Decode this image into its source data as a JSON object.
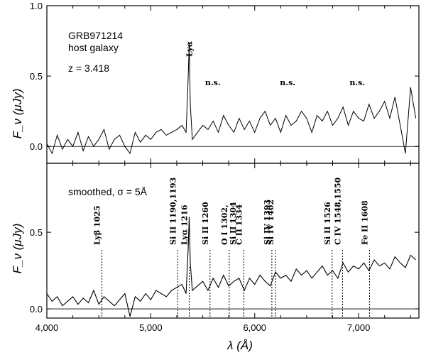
{
  "chart_data": [
    {
      "type": "line",
      "panel": "top",
      "ylabel": "F_ν (μJy)",
      "ylim": [
        -0.12,
        1.0
      ],
      "xlim": [
        4000,
        7580
      ],
      "yticks": [
        "0.0",
        "0.5",
        "1.0"
      ],
      "ytick_values": [
        0,
        0.5,
        1.0
      ],
      "annotations": [
        "GRB971214",
        "host galaxy",
        "z = 3.418"
      ],
      "line_label": "Lyα",
      "line_label_x": 5370,
      "ns_labels": [
        "n.s.",
        "n.s.",
        "n.s."
      ],
      "ns_x": [
        5570,
        6290,
        6960
      ],
      "series": [
        {
          "x": [
            4000,
            4050,
            4100,
            4150,
            4200,
            4250,
            4300,
            4350,
            4400,
            4450,
            4500,
            4550,
            4600,
            4650,
            4700,
            4750,
            4800,
            4850,
            4900,
            4950,
            5000,
            5050,
            5100,
            5150,
            5200,
            5250,
            5300,
            5340,
            5360,
            5370,
            5380,
            5400,
            5450,
            5500,
            5550,
            5600,
            5650,
            5700,
            5750,
            5800,
            5850,
            5900,
            5950,
            6000,
            6050,
            6100,
            6150,
            6200,
            6250,
            6300,
            6350,
            6400,
            6450,
            6500,
            6550,
            6600,
            6650,
            6700,
            6750,
            6800,
            6850,
            6900,
            6950,
            7000,
            7050,
            7100,
            7150,
            7200,
            7250,
            7300,
            7350,
            7400,
            7450,
            7500,
            7550
          ],
          "y": [
            0.02,
            -0.05,
            0.08,
            -0.02,
            0.05,
            0.0,
            0.1,
            -0.03,
            0.07,
            0.0,
            0.05,
            0.12,
            -0.02,
            0.05,
            0.08,
            0.0,
            -0.05,
            0.1,
            0.03,
            0.08,
            0.05,
            0.1,
            0.12,
            0.08,
            0.1,
            0.12,
            0.15,
            0.1,
            0.5,
            0.73,
            0.3,
            0.05,
            0.1,
            0.15,
            0.12,
            0.18,
            0.1,
            0.22,
            0.15,
            0.1,
            0.2,
            0.12,
            0.18,
            0.1,
            0.2,
            0.25,
            0.15,
            0.2,
            0.1,
            0.22,
            0.15,
            0.18,
            0.25,
            0.2,
            0.1,
            0.22,
            0.18,
            0.25,
            0.15,
            0.2,
            0.28,
            0.15,
            0.25,
            0.2,
            0.18,
            0.3,
            0.2,
            0.25,
            0.32,
            0.2,
            0.35,
            0.15,
            -0.05,
            0.42,
            0.2
          ]
        }
      ]
    },
    {
      "type": "line",
      "panel": "bottom",
      "ylabel": "F_ν (μJy)",
      "xlabel": "λ (Å)",
      "ylim": [
        -0.06,
        0.95
      ],
      "xlim": [
        4000,
        7580
      ],
      "xticks": [
        "4,000",
        "5,000",
        "6,000",
        "7,000"
      ],
      "xtick_values": [
        4000,
        5000,
        6000,
        7000
      ],
      "yticks": [
        "0.0",
        "0.5"
      ],
      "ytick_values": [
        0,
        0.5
      ],
      "annotations": [
        "smoothed, σ = 5Å"
      ],
      "lines": [
        {
          "label": "Lyβ 1025",
          "x": 4530
        },
        {
          "label": "Si II 1190,1193",
          "x": 5260
        },
        {
          "label": "Lyα 1216",
          "x": 5370
        },
        {
          "label": "Si II 1260",
          "x": 5570
        },
        {
          "label": "O I 1302,",
          "x": 5755
        },
        {
          "label": "Si II 1304",
          "x": 5755
        },
        {
          "label": "C II 1334",
          "x": 5895
        },
        {
          "label": "Si IV 1393",
          "x": 6165
        },
        {
          "label": "Si IV 1402",
          "x": 6200
        },
        {
          "label": "Si II 1526",
          "x": 6745
        },
        {
          "label": "C IV 1548,1550",
          "x": 6845
        },
        {
          "label": "Fe II 1608",
          "x": 7105
        }
      ],
      "series": [
        {
          "x": [
            4000,
            4050,
            4100,
            4150,
            4200,
            4250,
            4300,
            4350,
            4400,
            4450,
            4500,
            4550,
            4600,
            4650,
            4700,
            4750,
            4800,
            4850,
            4900,
            4950,
            5000,
            5050,
            5100,
            5150,
            5200,
            5250,
            5300,
            5340,
            5360,
            5370,
            5380,
            5400,
            5450,
            5500,
            5550,
            5600,
            5650,
            5700,
            5750,
            5800,
            5850,
            5900,
            5950,
            6000,
            6050,
            6100,
            6150,
            6200,
            6250,
            6300,
            6350,
            6400,
            6450,
            6500,
            6550,
            6600,
            6650,
            6700,
            6750,
            6800,
            6850,
            6900,
            6950,
            7000,
            7050,
            7100,
            7150,
            7200,
            7250,
            7300,
            7350,
            7400,
            7450,
            7500,
            7550
          ],
          "y": [
            0.1,
            0.05,
            0.08,
            0.02,
            0.05,
            0.08,
            0.03,
            0.07,
            0.04,
            0.12,
            0.03,
            0.08,
            0.05,
            0.02,
            0.06,
            0.1,
            -0.05,
            0.08,
            0.05,
            0.1,
            0.06,
            0.12,
            0.1,
            0.08,
            0.12,
            0.14,
            0.16,
            0.1,
            0.4,
            0.6,
            0.3,
            0.12,
            0.15,
            0.18,
            0.12,
            0.2,
            0.14,
            0.22,
            0.15,
            0.18,
            0.2,
            0.12,
            0.2,
            0.16,
            0.22,
            0.18,
            0.15,
            0.24,
            0.2,
            0.22,
            0.18,
            0.26,
            0.22,
            0.25,
            0.2,
            0.24,
            0.28,
            0.22,
            0.25,
            0.2,
            0.3,
            0.24,
            0.28,
            0.26,
            0.3,
            0.25,
            0.32,
            0.28,
            0.3,
            0.26,
            0.34,
            0.3,
            0.27,
            0.35,
            0.32
          ]
        }
      ]
    }
  ]
}
